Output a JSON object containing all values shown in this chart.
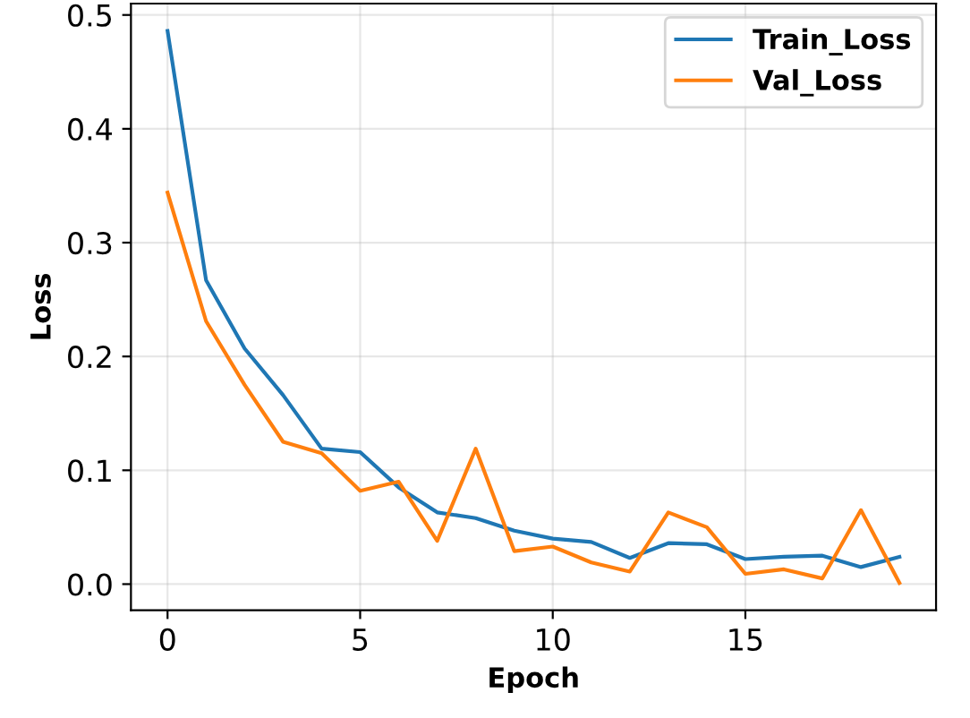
{
  "chart_data": {
    "type": "line",
    "xlabel": "Epoch",
    "ylabel": "Loss",
    "x": [
      0,
      1,
      2,
      3,
      4,
      5,
      6,
      7,
      8,
      9,
      10,
      11,
      12,
      13,
      14,
      15,
      16,
      17,
      18,
      19
    ],
    "series": [
      {
        "name": "Train_Loss",
        "color": "#1f77b4",
        "values": [
          0.486,
          0.267,
          0.207,
          0.166,
          0.119,
          0.116,
          0.085,
          0.063,
          0.058,
          0.047,
          0.04,
          0.037,
          0.023,
          0.036,
          0.035,
          0.022,
          0.024,
          0.025,
          0.015,
          0.024
        ]
      },
      {
        "name": "Val_Loss",
        "color": "#ff7f0e",
        "values": [
          0.344,
          0.231,
          0.175,
          0.125,
          0.115,
          0.082,
          0.09,
          0.038,
          0.119,
          0.029,
          0.033,
          0.019,
          0.011,
          0.063,
          0.05,
          0.009,
          0.013,
          0.005,
          0.065,
          0.001
        ]
      }
    ],
    "xlim": [
      -0.95,
      19.95
    ],
    "ylim": [
      -0.023,
      0.51
    ],
    "xticks": [
      0,
      5,
      10,
      15
    ],
    "yticks": [
      {
        "value": 0,
        "label": "0.0"
      },
      0.1,
      0.2,
      0.3,
      0.4,
      0.5
    ],
    "grid": true,
    "legend": "top right",
    "line_style": "solid",
    "marker": "none"
  }
}
